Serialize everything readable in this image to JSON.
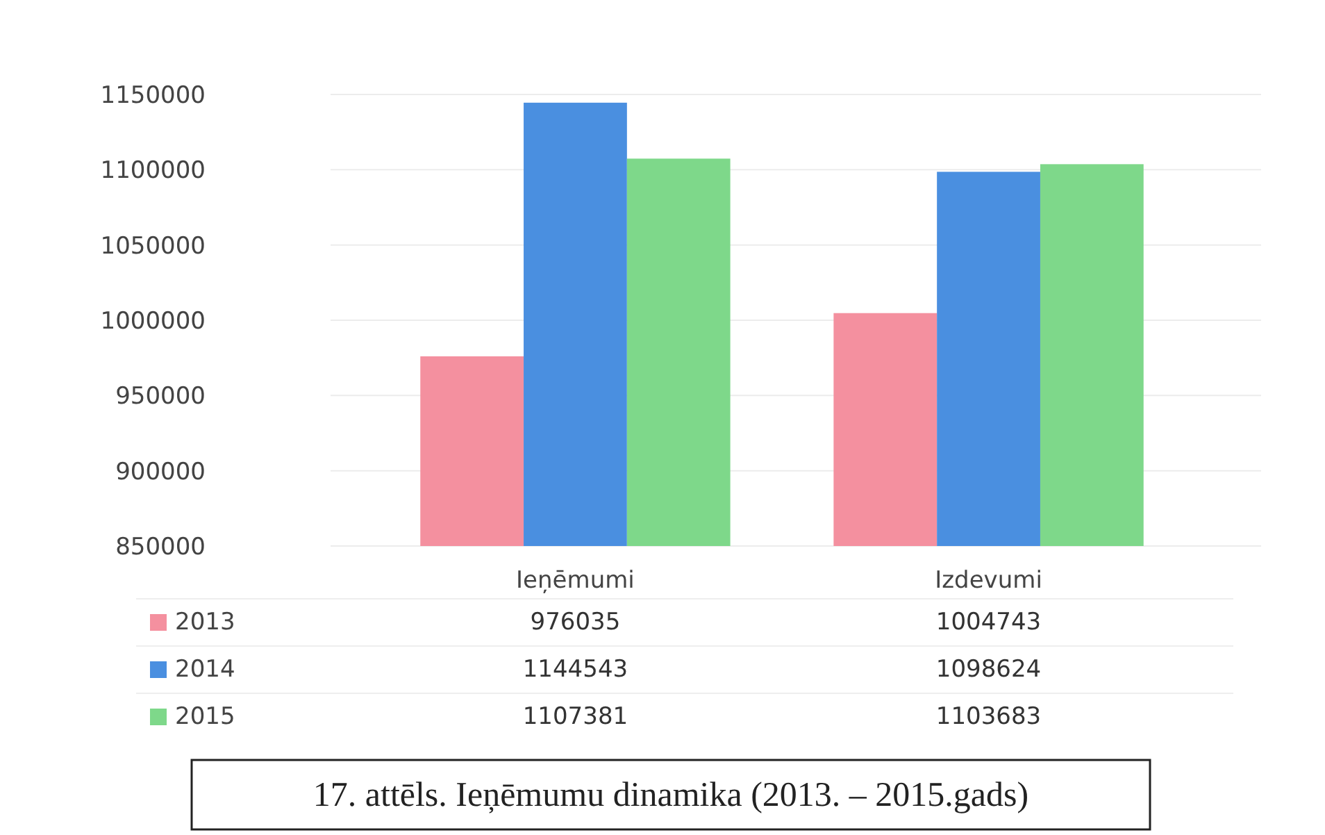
{
  "chart_data": {
    "type": "bar",
    "title": "17. attēls. Ieņēmumu dinamika (2013. – 2015.gads)",
    "categories": [
      "Ieņēmumi",
      "Izdevumi"
    ],
    "series": [
      {
        "name": "2013",
        "color": "#f4909f",
        "values": [
          976035,
          1004743
        ]
      },
      {
        "name": "2014",
        "color": "#4a8fe0",
        "values": [
          1144543,
          1098624
        ]
      },
      {
        "name": "2015",
        "color": "#7ed88a",
        "values": [
          1107381,
          1103683
        ]
      }
    ],
    "ylim": [
      850000,
      1150000
    ],
    "yticks": [
      850000,
      900000,
      950000,
      1000000,
      1050000,
      1100000,
      1150000
    ],
    "grid": "y",
    "legend": "bottom",
    "data_labels": true
  }
}
